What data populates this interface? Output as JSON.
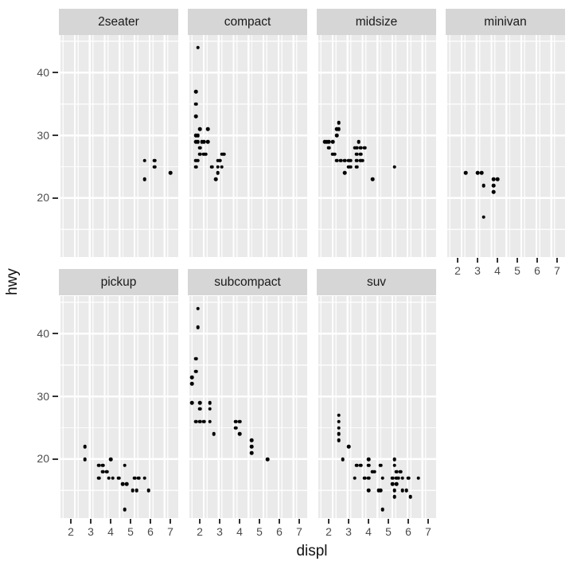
{
  "figure": {
    "background": "#ffffff",
    "legend": "none",
    "colors": {
      "point": "#000000",
      "panel_background": "#eaeaea",
      "strip_background": "#d6d6d6",
      "gridline": "#ffffff",
      "tick_text": "#4d4d4d",
      "axis_title_text": "#111111",
      "strip_text": "#1a1a1a"
    }
  },
  "chart_data": {
    "type": "scatter",
    "title": "",
    "xlabel": "displ",
    "ylabel": "hwy",
    "facet_by": "class",
    "legend_position": "none",
    "grid": "white major and minor gridlines on grey panels",
    "x_ticks": [
      2,
      3,
      4,
      5,
      6,
      7
    ],
    "x_tick_labels": [
      "2",
      "3",
      "4",
      "5",
      "6",
      "7"
    ],
    "y_ticks": [
      40,
      30,
      20
    ],
    "y_tick_labels": [
      "40",
      "30",
      "20"
    ],
    "x_range": [
      1.4,
      7.4
    ],
    "y_range": [
      10.6,
      46.0
    ],
    "facets": [
      {
        "label": "2seater",
        "row": 0,
        "col": 0,
        "x_axis": false,
        "points": [
          [
            5.7,
            26
          ],
          [
            6.2,
            26
          ],
          [
            6.2,
            25
          ],
          [
            5.7,
            23
          ],
          [
            7.0,
            24
          ]
        ]
      },
      {
        "label": "compact",
        "row": 0,
        "col": 1,
        "x_axis": false,
        "points": [
          [
            1.9,
            44
          ],
          [
            1.8,
            37
          ],
          [
            1.8,
            35
          ],
          [
            1.8,
            33
          ],
          [
            2.0,
            31
          ],
          [
            2.4,
            31
          ],
          [
            1.8,
            30
          ],
          [
            1.9,
            30
          ],
          [
            1.8,
            29
          ],
          [
            1.9,
            29
          ],
          [
            2.1,
            29
          ],
          [
            2.2,
            29
          ],
          [
            2.4,
            29
          ],
          [
            2.0,
            28
          ],
          [
            2.0,
            27
          ],
          [
            2.2,
            27
          ],
          [
            2.3,
            27
          ],
          [
            3.1,
            27
          ],
          [
            3.2,
            27
          ],
          [
            1.8,
            26
          ],
          [
            1.9,
            26
          ],
          [
            2.9,
            26
          ],
          [
            3.0,
            26
          ],
          [
            1.8,
            25
          ],
          [
            2.6,
            25
          ],
          [
            2.9,
            25
          ],
          [
            3.1,
            25
          ],
          [
            2.9,
            24
          ],
          [
            2.8,
            23
          ]
        ]
      },
      {
        "label": "midsize",
        "row": 0,
        "col": 2,
        "x_axis": false,
        "points": [
          [
            2.5,
            32
          ],
          [
            2.4,
            31
          ],
          [
            2.5,
            31
          ],
          [
            2.4,
            30
          ],
          [
            1.8,
            29
          ],
          [
            1.9,
            29
          ],
          [
            2.0,
            29
          ],
          [
            2.2,
            29
          ],
          [
            3.5,
            29
          ],
          [
            2.0,
            28
          ],
          [
            3.3,
            28
          ],
          [
            3.4,
            28
          ],
          [
            3.6,
            28
          ],
          [
            3.8,
            28
          ],
          [
            2.2,
            27
          ],
          [
            2.3,
            27
          ],
          [
            3.4,
            27
          ],
          [
            3.6,
            27
          ],
          [
            2.4,
            26
          ],
          [
            2.6,
            26
          ],
          [
            2.8,
            26
          ],
          [
            3.0,
            26
          ],
          [
            3.1,
            26
          ],
          [
            3.4,
            26
          ],
          [
            3.6,
            26
          ],
          [
            3.7,
            26
          ],
          [
            3.0,
            25
          ],
          [
            3.1,
            25
          ],
          [
            3.4,
            25
          ],
          [
            5.3,
            25
          ],
          [
            2.8,
            24
          ],
          [
            4.2,
            23
          ]
        ]
      },
      {
        "label": "minivan",
        "row": 0,
        "col": 3,
        "x_axis": true,
        "points": [
          [
            2.4,
            24
          ],
          [
            3.0,
            24
          ],
          [
            3.2,
            24
          ],
          [
            3.8,
            23
          ],
          [
            4.0,
            23
          ],
          [
            3.3,
            22
          ],
          [
            3.8,
            22
          ],
          [
            3.8,
            21
          ],
          [
            3.3,
            17
          ]
        ]
      },
      {
        "label": "pickup",
        "row": 1,
        "col": 0,
        "x_axis": true,
        "points": [
          [
            2.7,
            22
          ],
          [
            2.7,
            20
          ],
          [
            4.0,
            20
          ],
          [
            3.4,
            19
          ],
          [
            3.6,
            19
          ],
          [
            4.7,
            19
          ],
          [
            3.6,
            18
          ],
          [
            3.8,
            18
          ],
          [
            3.4,
            17
          ],
          [
            3.9,
            17
          ],
          [
            4.1,
            17
          ],
          [
            4.4,
            17
          ],
          [
            5.2,
            17
          ],
          [
            5.4,
            17
          ],
          [
            5.7,
            17
          ],
          [
            4.6,
            16
          ],
          [
            4.8,
            16
          ],
          [
            5.1,
            15
          ],
          [
            5.3,
            15
          ],
          [
            5.9,
            15
          ],
          [
            4.7,
            12
          ]
        ]
      },
      {
        "label": "subcompact",
        "row": 1,
        "col": 1,
        "x_axis": true,
        "points": [
          [
            1.9,
            44
          ],
          [
            1.9,
            41
          ],
          [
            1.8,
            36
          ],
          [
            1.8,
            34
          ],
          [
            1.6,
            33
          ],
          [
            1.6,
            32
          ],
          [
            1.6,
            29
          ],
          [
            2.0,
            29
          ],
          [
            2.5,
            29
          ],
          [
            2.0,
            28
          ],
          [
            2.5,
            28
          ],
          [
            1.8,
            26
          ],
          [
            2.0,
            26
          ],
          [
            2.2,
            26
          ],
          [
            2.5,
            26
          ],
          [
            3.8,
            26
          ],
          [
            4.0,
            26
          ],
          [
            3.8,
            25
          ],
          [
            2.7,
            24
          ],
          [
            4.0,
            24
          ],
          [
            4.6,
            23
          ],
          [
            4.6,
            22
          ],
          [
            4.6,
            21
          ],
          [
            5.4,
            20
          ]
        ]
      },
      {
        "label": "suv",
        "row": 1,
        "col": 2,
        "x_axis": true,
        "points": [
          [
            2.5,
            27
          ],
          [
            2.5,
            26
          ],
          [
            2.5,
            25
          ],
          [
            2.5,
            24
          ],
          [
            2.5,
            23
          ],
          [
            3.0,
            22
          ],
          [
            2.7,
            20
          ],
          [
            4.0,
            20
          ],
          [
            5.3,
            20
          ],
          [
            3.4,
            19
          ],
          [
            3.6,
            19
          ],
          [
            4.0,
            19
          ],
          [
            4.6,
            19
          ],
          [
            5.3,
            19
          ],
          [
            4.2,
            18
          ],
          [
            4.3,
            18
          ],
          [
            5.4,
            18
          ],
          [
            5.6,
            18
          ],
          [
            3.3,
            17
          ],
          [
            3.8,
            17
          ],
          [
            4.0,
            17
          ],
          [
            4.7,
            17
          ],
          [
            5.2,
            17
          ],
          [
            5.4,
            17
          ],
          [
            5.5,
            17
          ],
          [
            5.7,
            17
          ],
          [
            6.0,
            17
          ],
          [
            6.5,
            17
          ],
          [
            5.2,
            16
          ],
          [
            5.4,
            16
          ],
          [
            4.0,
            15
          ],
          [
            4.5,
            15
          ],
          [
            4.6,
            15
          ],
          [
            5.3,
            15
          ],
          [
            5.7,
            15
          ],
          [
            5.9,
            15
          ],
          [
            5.3,
            14
          ],
          [
            6.1,
            14
          ],
          [
            4.7,
            12
          ]
        ]
      }
    ]
  }
}
